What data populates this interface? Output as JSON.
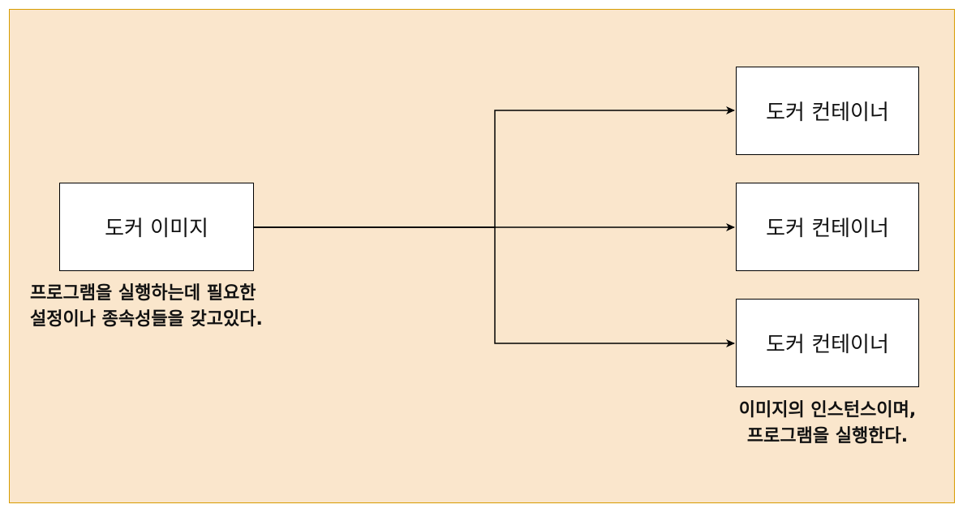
{
  "image": {
    "label": "도커 이미지",
    "note_lines": [
      "프로그램을 실행하는데 필요한",
      "설정이나 종속성들을 갖고있다."
    ]
  },
  "containers": [
    {
      "label": "도커 컨테이너"
    },
    {
      "label": "도커 컨테이너"
    },
    {
      "label": "도커 컨테이너"
    }
  ],
  "container_note_lines": [
    "이미지의 인스턴스이며,",
    "프로그램을 실행한다."
  ],
  "colors": {
    "background": "#fae6cc",
    "border": "#d79b00",
    "box_fill": "#ffffff",
    "stroke": "#000000"
  }
}
